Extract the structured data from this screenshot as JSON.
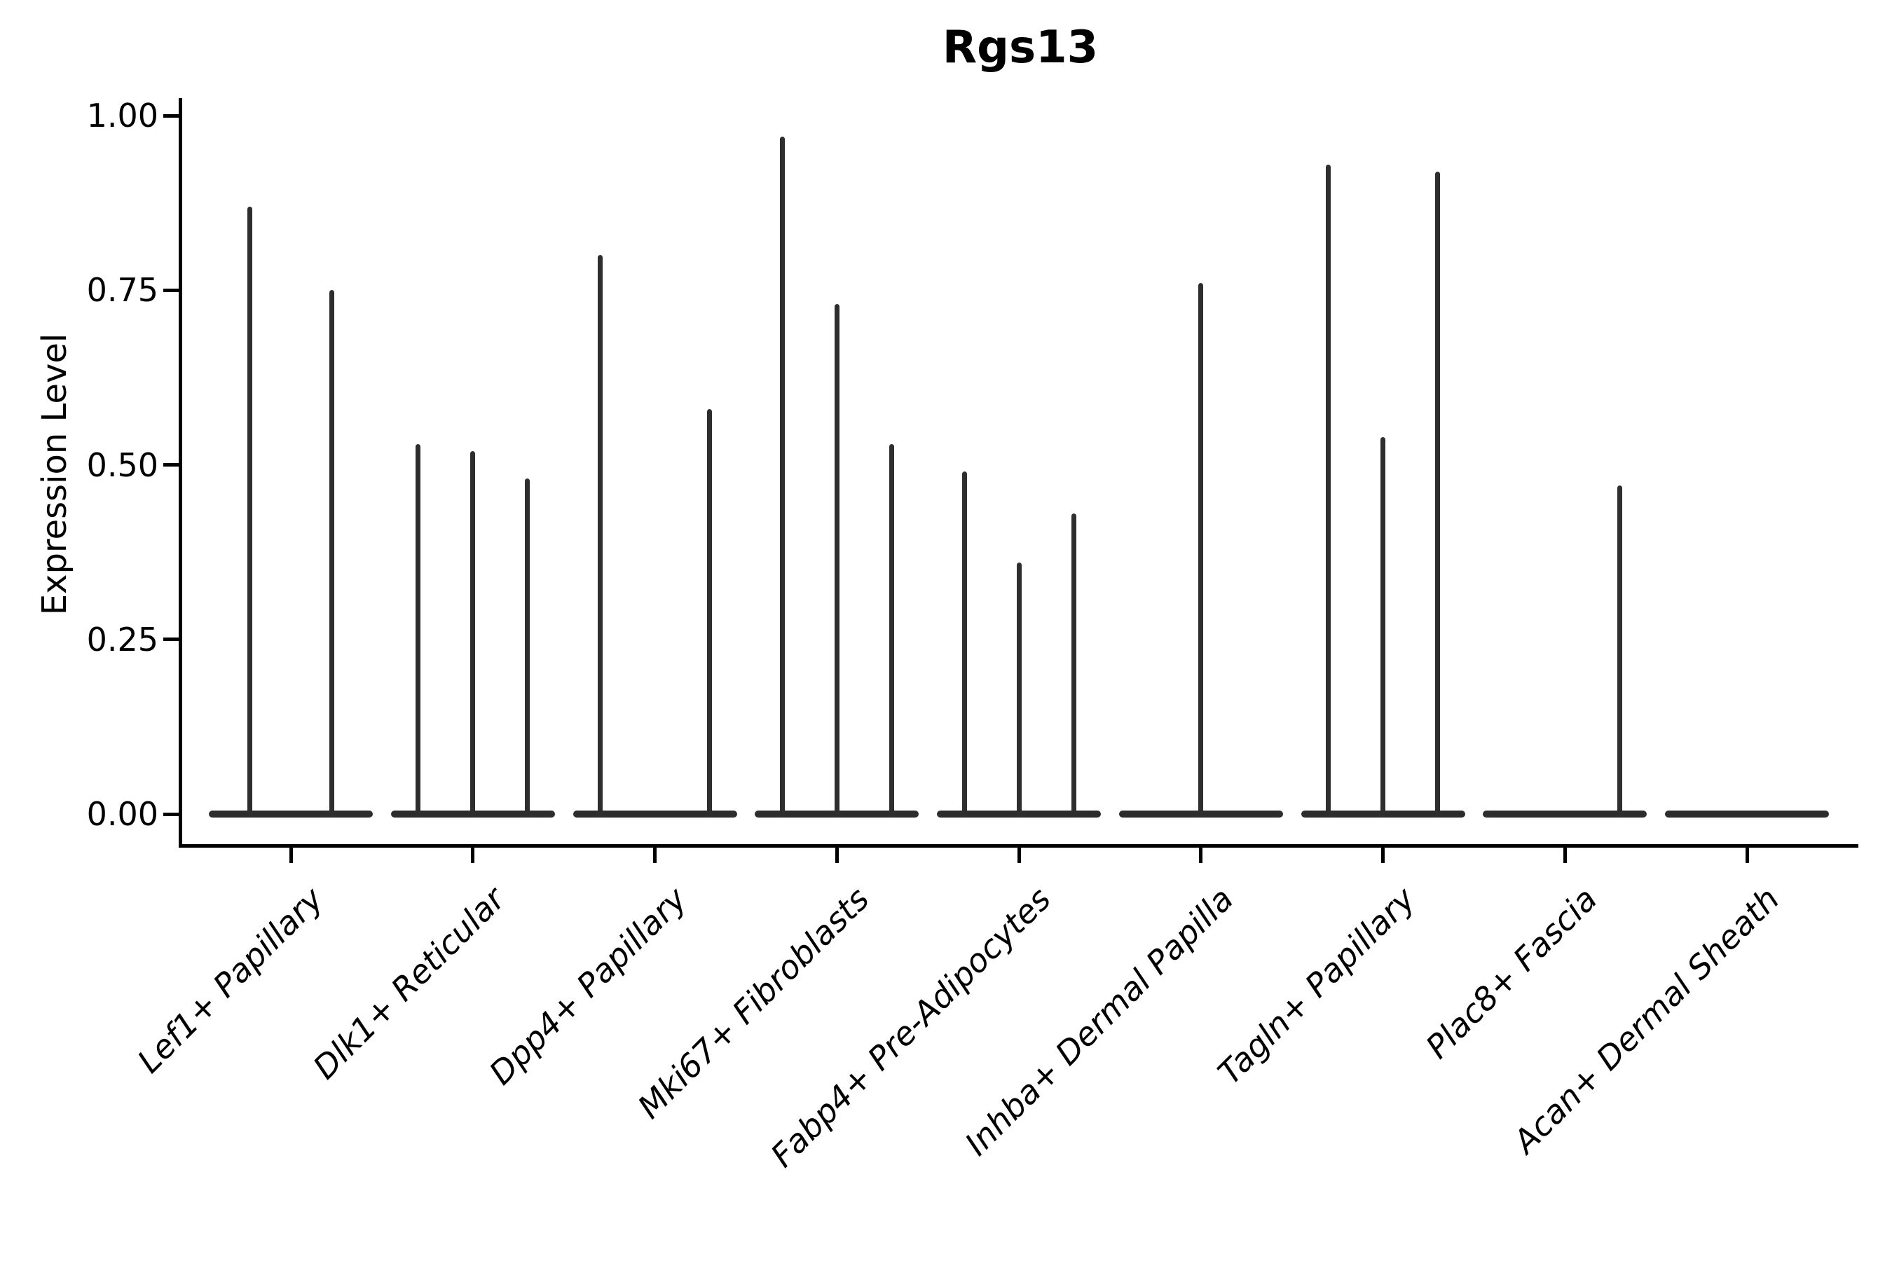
{
  "chart_data": {
    "type": "violin",
    "title": "Rgs13",
    "ylabel": "Expression Level",
    "xlabel": "",
    "ylim": [
      0,
      1.02
    ],
    "grid": false,
    "legend": "none",
    "yticks": [
      {
        "label": "1.00",
        "value": 1.0
      },
      {
        "label": "0.75",
        "value": 0.75
      },
      {
        "label": "0.50",
        "value": 0.5
      },
      {
        "label": "0.25",
        "value": 0.25
      },
      {
        "label": "0.00",
        "value": 0.0
      }
    ],
    "categories": [
      "Lef1+ Papillary",
      "Dlk1+ Reticular",
      "Dpp4+ Papillary",
      "Mki67+ Fibroblasts",
      "Fabp4+ Pre-Adipocytes",
      "Inhba+ Dermal Papilla",
      "Tagln+ Papillary",
      "Plac8+ Fascia",
      "Acan+ Dermal Sheath"
    ],
    "groups": [
      {
        "category": "Lef1+ Papillary",
        "violin_max_values": [
          0.87,
          0.75
        ]
      },
      {
        "category": "Dlk1+ Reticular",
        "violin_max_values": [
          0.53,
          0.52,
          0.48
        ]
      },
      {
        "category": "Dpp4+ Papillary",
        "violin_max_values": [
          0.8,
          0,
          0.58
        ]
      },
      {
        "category": "Mki67+ Fibroblasts",
        "violin_max_values": [
          0.97,
          0.73,
          0.53
        ]
      },
      {
        "category": "Fabp4+ Pre-Adipocytes",
        "violin_max_values": [
          0.49,
          0.36,
          0.43
        ]
      },
      {
        "category": "Inhba+ Dermal Papilla",
        "violin_max_values": [
          0.76
        ]
      },
      {
        "category": "Tagln+ Papillary",
        "violin_max_values": [
          0.93,
          0.54,
          0.92
        ]
      },
      {
        "category": "Plac8+ Fascia",
        "violin_max_values": [
          0,
          0,
          0.47
        ]
      },
      {
        "category": "Acan+ Dermal Sheath",
        "violin_max_values": [
          0
        ]
      }
    ],
    "style": {
      "ink_color": "#2d2d2d",
      "axis_color": "#000000",
      "background": "#ffffff"
    }
  }
}
